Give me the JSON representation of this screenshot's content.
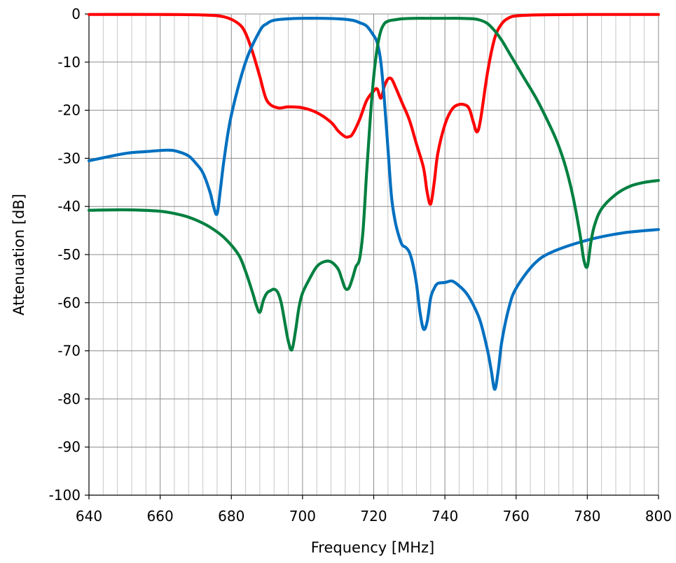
{
  "chart_data": {
    "type": "line",
    "xlabel": "Frequency [MHz]",
    "ylabel": "Attenuation [dB]",
    "xlim": [
      640,
      800
    ],
    "ylim": [
      -100,
      0
    ],
    "xticks": [
      640,
      660,
      680,
      700,
      720,
      740,
      760,
      780,
      800
    ],
    "yticks": [
      0,
      -10,
      -20,
      -30,
      -40,
      -50,
      -60,
      -70,
      -80,
      -90,
      -100
    ],
    "x_minor_step": 4,
    "grid": true,
    "series": [
      {
        "color": "#ff0000",
        "x": [
          640,
          660,
          672,
          678,
          682,
          684,
          686,
          688,
          690,
          693,
          696,
          700,
          704,
          708,
          710,
          712,
          713,
          714,
          716,
          718,
          720,
          721,
          722,
          723,
          724,
          725,
          726,
          728,
          730,
          732,
          734,
          735,
          736,
          737,
          738,
          740,
          742,
          744,
          746,
          747,
          748,
          749,
          750,
          752,
          754,
          756,
          758,
          760,
          765,
          770,
          780,
          800
        ],
        "values": [
          -0.1,
          -0.1,
          -0.2,
          -0.6,
          -2,
          -4,
          -8,
          -13,
          -18,
          -19.5,
          -19.3,
          -19.5,
          -20.5,
          -22.5,
          -24.3,
          -25.5,
          -25.5,
          -25,
          -22,
          -18,
          -16,
          -15.6,
          -17.5,
          -15,
          -13.5,
          -13.5,
          -15,
          -18.5,
          -22,
          -27,
          -32,
          -37,
          -39.5,
          -35,
          -29,
          -23,
          -19.8,
          -18.8,
          -19,
          -20,
          -22.5,
          -24.5,
          -22,
          -12,
          -5,
          -2,
          -0.8,
          -0.4,
          -0.2,
          -0.15,
          -0.1,
          -0.1
        ]
      },
      {
        "color": "#0070c0",
        "x": [
          640,
          650,
          656,
          662,
          665,
          668,
          670,
          672,
          674,
          675,
          676,
          677,
          678,
          680,
          684,
          688,
          690,
          692,
          696,
          700,
          705,
          710,
          714,
          716,
          718,
          720,
          721,
          722,
          723,
          724,
          725,
          726,
          727,
          728,
          729,
          730,
          731,
          732,
          733,
          734,
          735,
          736,
          737,
          738,
          740,
          742,
          744,
          746,
          748,
          750,
          752,
          753,
          754,
          755,
          756,
          758,
          760,
          765,
          770,
          780,
          790,
          800
        ],
        "values": [
          -30.5,
          -29,
          -28.6,
          -28.3,
          -28.6,
          -29.5,
          -31,
          -33,
          -37,
          -40,
          -41.5,
          -36,
          -30,
          -21,
          -10,
          -3.5,
          -2,
          -1.3,
          -1,
          -0.9,
          -0.9,
          -1,
          -1.3,
          -1.8,
          -2.5,
          -4.5,
          -6,
          -10,
          -18,
          -28,
          -38,
          -43,
          -46,
          -48,
          -48.5,
          -49.5,
          -52,
          -56,
          -62,
          -65.5,
          -64,
          -59,
          -57,
          -56,
          -55.8,
          -55.5,
          -56.5,
          -58,
          -60.5,
          -64,
          -70,
          -74,
          -78,
          -74,
          -68,
          -61,
          -57,
          -52,
          -49.5,
          -47,
          -45.5,
          -44.8
        ]
      },
      {
        "color": "#008040",
        "x": [
          640,
          650,
          660,
          666,
          670,
          674,
          678,
          682,
          684,
          686,
          687,
          688,
          689,
          690,
          691,
          692,
          693,
          694,
          695,
          696,
          697,
          698,
          699,
          700,
          702,
          704,
          706,
          708,
          710,
          711,
          712,
          713,
          714,
          715,
          716,
          717,
          718,
          719,
          720,
          721,
          722,
          723,
          724,
          725,
          726,
          728,
          732,
          736,
          740,
          744,
          748,
          750,
          752,
          754,
          756,
          758,
          762,
          766,
          770,
          772,
          774,
          776,
          778,
          779,
          780,
          781,
          782,
          784,
          788,
          792,
          796,
          800
        ],
        "values": [
          -40.8,
          -40.7,
          -41,
          -41.8,
          -42.8,
          -44.3,
          -46.5,
          -50,
          -53.5,
          -58,
          -60.5,
          -62,
          -59.5,
          -58,
          -57.5,
          -57.2,
          -57.8,
          -60,
          -64,
          -68,
          -69.8,
          -66,
          -61,
          -58,
          -55,
          -52.5,
          -51.5,
          -51.5,
          -53,
          -55,
          -57,
          -57,
          -55,
          -52.5,
          -51,
          -45,
          -33,
          -22,
          -13,
          -7,
          -3.5,
          -2,
          -1.5,
          -1.3,
          -1.2,
          -1,
          -0.9,
          -0.9,
          -0.9,
          -0.9,
          -1,
          -1.3,
          -2,
          -3.5,
          -5.5,
          -8,
          -13,
          -18,
          -24,
          -27.5,
          -32,
          -38,
          -46,
          -51,
          -52.5,
          -47.5,
          -44,
          -40.5,
          -37.5,
          -35.8,
          -35,
          -34.6
        ]
      }
    ]
  }
}
